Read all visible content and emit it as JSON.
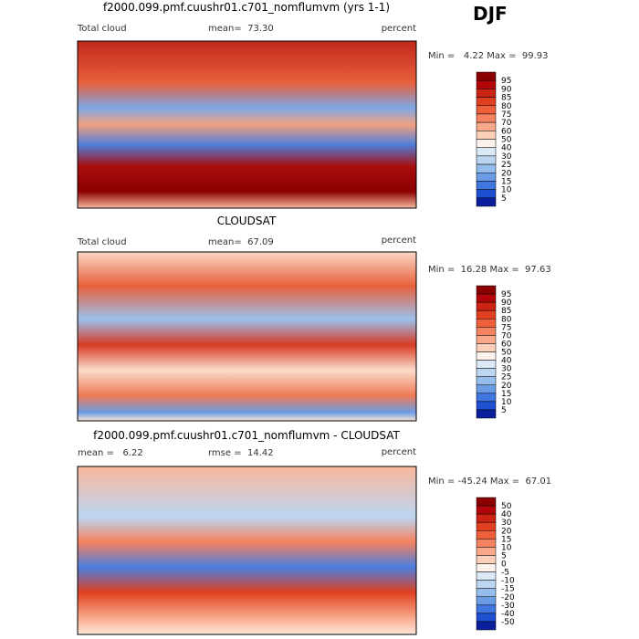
{
  "season": "DJF",
  "panels": [
    {
      "title": "f2000.099.pmf.cuushr01.c701_nomflumvm (yrs 1-1)",
      "left_label": "Total cloud",
      "stats": [
        "mean=  73.30"
      ],
      "units": "percent",
      "min_max": "Min =   4.22 Max =  99.93",
      "colorbar": [
        95,
        90,
        85,
        80,
        75,
        70,
        60,
        50,
        40,
        30,
        25,
        20,
        15,
        10,
        5
      ]
    },
    {
      "title": "CLOUDSAT",
      "left_label": "Total cloud",
      "stats": [
        "mean=  67.09"
      ],
      "units": "percent",
      "min_max": "Min =  16.28 Max =  97.63",
      "colorbar": [
        95,
        90,
        85,
        80,
        75,
        70,
        60,
        50,
        40,
        30,
        25,
        20,
        15,
        10,
        5
      ]
    },
    {
      "title": "f2000.099.pmf.cuushr01.c701_nomflumvm - CLOUDSAT",
      "stats": [
        "mean =   6.22",
        "rmse =  14.42"
      ],
      "units": "percent",
      "min_max": "Min = -45.24 Max =  67.01",
      "colorbar": [
        50,
        40,
        30,
        20,
        15,
        10,
        5,
        0,
        -5,
        -10,
        -15,
        -20,
        -30,
        -40,
        -50
      ]
    }
  ]
}
